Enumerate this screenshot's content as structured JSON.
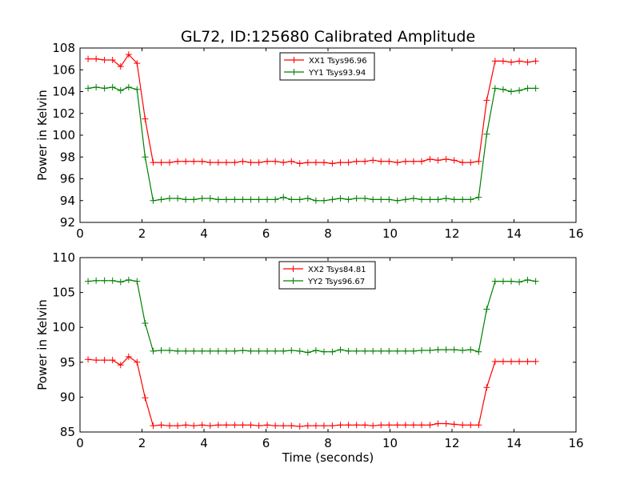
{
  "figure": {
    "title": "GL72, ID:125680 Calibrated Amplitude"
  },
  "chart_data": [
    {
      "type": "line",
      "ylabel": "Power in Kelvin",
      "xlabel": "",
      "xlim": [
        0,
        16
      ],
      "ylim": [
        92,
        108
      ],
      "xticks": [
        0,
        2,
        4,
        6,
        8,
        10,
        12,
        14,
        16
      ],
      "yticks": [
        92,
        94,
        96,
        98,
        100,
        102,
        104,
        106,
        108
      ],
      "legend_position": "upper-center",
      "x": [
        0.26,
        0.52,
        0.79,
        1.05,
        1.31,
        1.57,
        1.84,
        2.1,
        2.36,
        2.62,
        2.89,
        3.15,
        3.41,
        3.67,
        3.94,
        4.2,
        4.46,
        4.72,
        4.99,
        5.25,
        5.51,
        5.77,
        6.04,
        6.3,
        6.56,
        6.82,
        7.09,
        7.35,
        7.61,
        7.87,
        8.14,
        8.4,
        8.66,
        8.92,
        9.19,
        9.45,
        9.71,
        9.97,
        10.24,
        10.5,
        10.76,
        11.02,
        11.29,
        11.55,
        11.81,
        12.07,
        12.34,
        12.6,
        12.86,
        13.12,
        13.39,
        13.65,
        13.91,
        14.17,
        14.44,
        14.7
      ],
      "series": [
        {
          "name": "XX1 Tsys96.96",
          "color": "#ff0000",
          "values": [
            107.0,
            107.0,
            106.9,
            106.9,
            106.3,
            107.4,
            106.6,
            101.5,
            97.5,
            97.5,
            97.5,
            97.6,
            97.6,
            97.6,
            97.6,
            97.5,
            97.5,
            97.5,
            97.5,
            97.6,
            97.5,
            97.5,
            97.6,
            97.6,
            97.5,
            97.6,
            97.4,
            97.5,
            97.5,
            97.5,
            97.4,
            97.5,
            97.5,
            97.6,
            97.6,
            97.7,
            97.6,
            97.6,
            97.5,
            97.6,
            97.6,
            97.6,
            97.8,
            97.7,
            97.8,
            97.7,
            97.5,
            97.5,
            97.6,
            103.2,
            106.8,
            106.8,
            106.7,
            106.8,
            106.7,
            106.8
          ]
        },
        {
          "name": "YY1 Tsys93.94",
          "color": "#008000",
          "values": [
            104.3,
            104.4,
            104.3,
            104.4,
            104.1,
            104.4,
            104.2,
            98.0,
            94.0,
            94.1,
            94.2,
            94.2,
            94.1,
            94.1,
            94.2,
            94.2,
            94.1,
            94.1,
            94.1,
            94.1,
            94.1,
            94.1,
            94.1,
            94.1,
            94.3,
            94.1,
            94.1,
            94.2,
            94.0,
            94.0,
            94.1,
            94.2,
            94.1,
            94.2,
            94.2,
            94.1,
            94.1,
            94.1,
            94.0,
            94.1,
            94.2,
            94.1,
            94.1,
            94.1,
            94.2,
            94.1,
            94.1,
            94.1,
            94.3,
            100.1,
            104.3,
            104.2,
            104.0,
            104.1,
            104.3,
            104.3
          ]
        }
      ]
    },
    {
      "type": "line",
      "ylabel": "Power in Kelvin",
      "xlabel": "Time (seconds)",
      "xlim": [
        0,
        16
      ],
      "ylim": [
        85,
        110
      ],
      "xticks": [
        0,
        2,
        4,
        6,
        8,
        10,
        12,
        14,
        16
      ],
      "yticks": [
        85,
        90,
        95,
        100,
        105,
        110
      ],
      "legend_position": "upper-center",
      "x": [
        0.26,
        0.52,
        0.79,
        1.05,
        1.31,
        1.57,
        1.84,
        2.1,
        2.36,
        2.62,
        2.89,
        3.15,
        3.41,
        3.67,
        3.94,
        4.2,
        4.46,
        4.72,
        4.99,
        5.25,
        5.51,
        5.77,
        6.04,
        6.3,
        6.56,
        6.82,
        7.09,
        7.35,
        7.61,
        7.87,
        8.14,
        8.4,
        8.66,
        8.92,
        9.19,
        9.45,
        9.71,
        9.97,
        10.24,
        10.5,
        10.76,
        11.02,
        11.29,
        11.55,
        11.81,
        12.07,
        12.34,
        12.6,
        12.86,
        13.12,
        13.39,
        13.65,
        13.91,
        14.17,
        14.44,
        14.7
      ],
      "series": [
        {
          "name": "XX2 Tsys84.81",
          "color": "#ff0000",
          "values": [
            95.4,
            95.3,
            95.3,
            95.3,
            94.6,
            95.8,
            95.0,
            89.9,
            85.9,
            86.0,
            85.9,
            85.9,
            86.0,
            85.9,
            86.0,
            85.9,
            86.0,
            86.0,
            86.0,
            86.0,
            86.0,
            85.9,
            86.0,
            85.9,
            85.9,
            85.9,
            85.8,
            85.9,
            85.9,
            85.9,
            85.9,
            86.0,
            86.0,
            86.0,
            86.0,
            85.9,
            86.0,
            86.0,
            86.0,
            86.0,
            86.0,
            86.0,
            86.0,
            86.2,
            86.2,
            86.1,
            86.0,
            86.0,
            86.0,
            91.4,
            95.1,
            95.1,
            95.1,
            95.1,
            95.1,
            95.1
          ]
        },
        {
          "name": "YY2 Tsys96.67",
          "color": "#008000",
          "values": [
            106.6,
            106.7,
            106.7,
            106.7,
            106.5,
            106.8,
            106.6,
            100.6,
            96.6,
            96.7,
            96.7,
            96.6,
            96.6,
            96.6,
            96.6,
            96.6,
            96.6,
            96.6,
            96.6,
            96.7,
            96.6,
            96.6,
            96.6,
            96.6,
            96.6,
            96.7,
            96.6,
            96.4,
            96.7,
            96.5,
            96.5,
            96.8,
            96.6,
            96.6,
            96.6,
            96.6,
            96.6,
            96.6,
            96.6,
            96.6,
            96.6,
            96.7,
            96.7,
            96.8,
            96.8,
            96.8,
            96.7,
            96.8,
            96.5,
            102.6,
            106.6,
            106.6,
            106.6,
            106.5,
            106.8,
            106.6
          ]
        }
      ]
    }
  ]
}
